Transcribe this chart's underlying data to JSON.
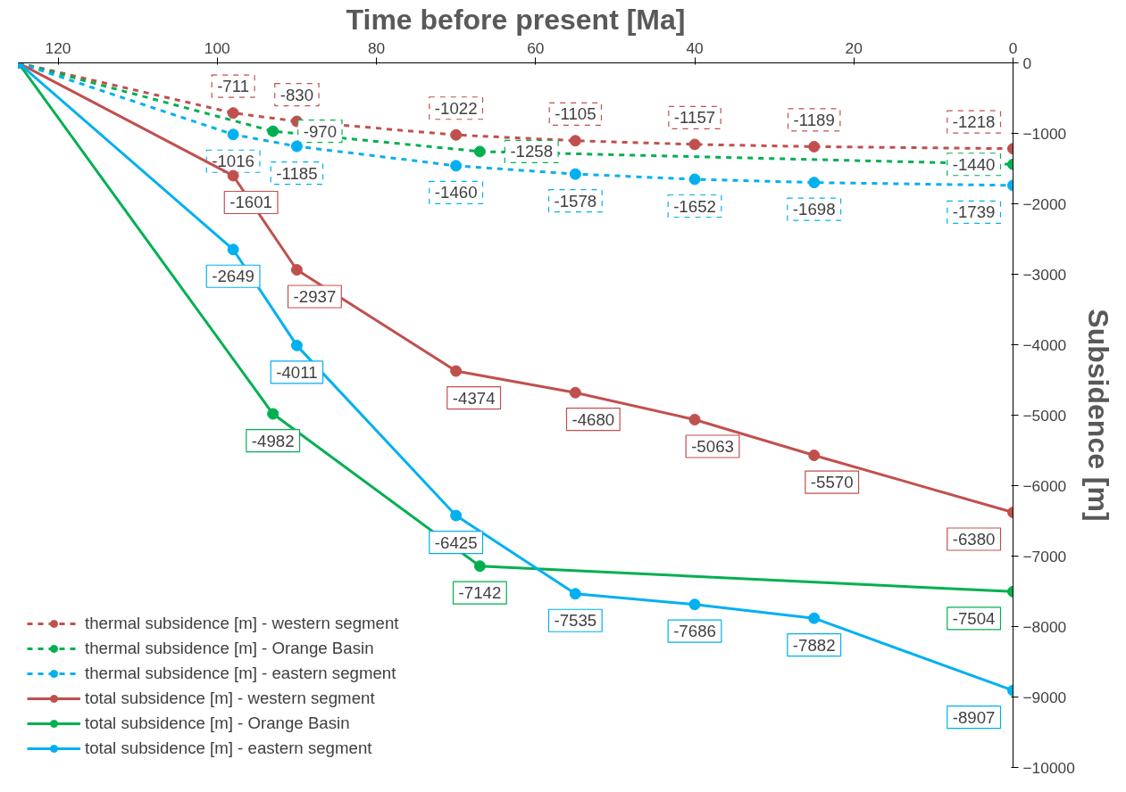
{
  "chart_data": {
    "type": "line",
    "xlabel": "Time before present [Ma]",
    "ylabel": "Subsidence [m]",
    "xlim": [
      125,
      0
    ],
    "xticks": [
      120,
      100,
      80,
      60,
      40,
      20,
      0
    ],
    "ylim": [
      -10000,
      0
    ],
    "yticks": [
      0,
      -1000,
      -2000,
      -3000,
      -4000,
      -5000,
      -6000,
      -7000,
      -8000,
      -9000,
      -10000
    ],
    "grid": false,
    "legend": "bottom left",
    "marker": "circle",
    "series": [
      {
        "name": "thermal subsidence [m] - western segment",
        "color": "#c0504d",
        "line_style": "dashed",
        "x": [
          125,
          98,
          90,
          70,
          55,
          40,
          25,
          0
        ],
        "values": [
          0,
          -711,
          -830,
          -1022,
          -1105,
          -1157,
          -1189,
          -1218
        ],
        "value_labels": [
          null,
          "-711",
          "-830",
          "-1022",
          "-1105",
          "-1157",
          "-1189",
          "-1218"
        ]
      },
      {
        "name": "thermal subsidence [m] - Orange Basin",
        "color": "#00b050",
        "line_style": "dashed",
        "x": [
          125,
          93,
          67,
          0
        ],
        "values": [
          0,
          -970,
          -1258,
          -1440
        ],
        "value_labels": [
          null,
          "-970",
          "-1258",
          "-1440"
        ]
      },
      {
        "name": "thermal subsidence [m] - eastern segment",
        "color": "#00b0f0",
        "line_style": "dashed",
        "x": [
          125,
          98,
          90,
          70,
          55,
          40,
          25,
          0
        ],
        "values": [
          0,
          -1016,
          -1185,
          -1460,
          -1578,
          -1652,
          -1698,
          -1739
        ],
        "value_labels": [
          null,
          "-1016",
          "-1185",
          "-1460",
          "-1578",
          "-1652",
          "-1698",
          "-1739"
        ]
      },
      {
        "name": "total subsidence [m] - western segment",
        "color": "#c0504d",
        "line_style": "solid",
        "x": [
          125,
          98,
          90,
          70,
          55,
          40,
          25,
          0
        ],
        "values": [
          0,
          -1601,
          -2937,
          -4374,
          -4680,
          -5063,
          -5570,
          -6380
        ],
        "value_labels": [
          null,
          "-1601",
          "-2937",
          "-4374",
          "-4680",
          "-5063",
          "-5570",
          "-6380"
        ]
      },
      {
        "name": "total subsidence [m] - Orange Basin",
        "color": "#00b050",
        "line_style": "solid",
        "x": [
          125,
          93,
          67,
          0
        ],
        "values": [
          0,
          -4982,
          -7142,
          -7504
        ],
        "value_labels": [
          null,
          "-4982",
          "-7142",
          "-7504"
        ]
      },
      {
        "name": "total subsidence [m] - eastern segment",
        "color": "#00b0f0",
        "line_style": "solid",
        "x": [
          125,
          98,
          90,
          70,
          55,
          40,
          25,
          0
        ],
        "values": [
          0,
          -2649,
          -4011,
          -6425,
          -7535,
          -7686,
          -7882,
          -8907
        ],
        "value_labels": [
          null,
          "-2649",
          "-4011",
          "-6425",
          "-7535",
          "-7686",
          "-7882",
          "-8907"
        ]
      }
    ]
  }
}
